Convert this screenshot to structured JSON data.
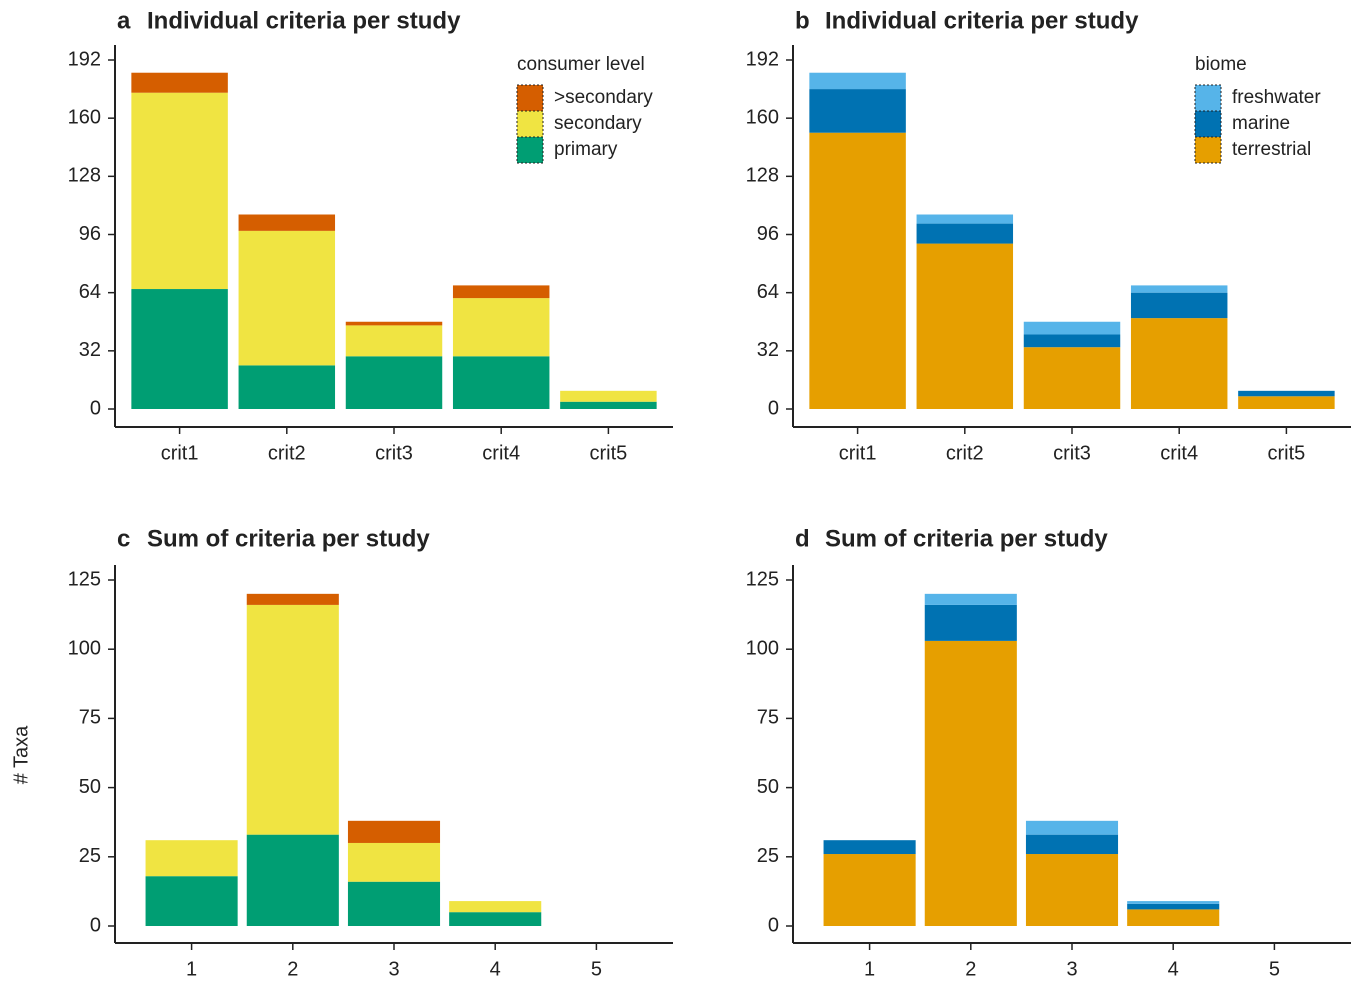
{
  "ylabel": "# Taxa",
  "chart_data": [
    {
      "type": "stacked_bar",
      "panel_label": "a",
      "title": "Individual criteria per study",
      "categories": [
        "crit1",
        "crit2",
        "crit3",
        "crit4",
        "crit5"
      ],
      "legend_title": "consumer level",
      "legend": "top-right",
      "series": [
        {
          "name": "primary",
          "color": "#009e73",
          "values": [
            66,
            24,
            29,
            29,
            4
          ]
        },
        {
          "name": "secondary",
          "color": "#f0e442",
          "values": [
            108,
            74,
            17,
            32,
            6
          ]
        },
        {
          "name": ">secondary",
          "color": "#d55e00",
          "values": [
            11,
            9,
            2,
            7,
            0
          ]
        }
      ],
      "ylim": [
        0,
        192
      ],
      "yticks": [
        0,
        32,
        64,
        96,
        128,
        160,
        192
      ]
    },
    {
      "type": "stacked_bar",
      "panel_label": "b",
      "title": "Individual criteria per study",
      "categories": [
        "crit1",
        "crit2",
        "crit3",
        "crit4",
        "crit5"
      ],
      "legend_title": "biome",
      "legend": "top-right",
      "series": [
        {
          "name": "terrestrial",
          "color": "#e69f00",
          "values": [
            152,
            91,
            34,
            50,
            7
          ]
        },
        {
          "name": "marine",
          "color": "#0072b2",
          "values": [
            24,
            11,
            7,
            14,
            3
          ]
        },
        {
          "name": "freshwater",
          "color": "#56b4e9",
          "values": [
            9,
            5,
            7,
            4,
            0
          ]
        }
      ],
      "ylim": [
        0,
        192
      ],
      "yticks": [
        0,
        32,
        64,
        96,
        128,
        160,
        192
      ]
    },
    {
      "type": "stacked_bar",
      "panel_label": "c",
      "title": "Sum of criteria per study",
      "categories": [
        "1",
        "2",
        "3",
        "4",
        "5"
      ],
      "series": [
        {
          "color": "#009e73",
          "values": [
            18,
            33,
            16,
            5,
            0
          ]
        },
        {
          "color": "#f0e442",
          "values": [
            13,
            83,
            14,
            4,
            0
          ]
        },
        {
          "color": "#d55e00",
          "values": [
            0,
            4,
            8,
            0,
            0
          ]
        }
      ],
      "ylim": [
        0,
        125
      ],
      "yticks": [
        0,
        25,
        50,
        75,
        100,
        125
      ]
    },
    {
      "type": "stacked_bar",
      "panel_label": "d",
      "title": "Sum of criteria per study",
      "categories": [
        "1",
        "2",
        "3",
        "4",
        "5"
      ],
      "series": [
        {
          "color": "#e69f00",
          "values": [
            26,
            103,
            26,
            6,
            0
          ]
        },
        {
          "color": "#0072b2",
          "values": [
            5,
            13,
            7,
            2,
            0
          ]
        },
        {
          "color": "#56b4e9",
          "values": [
            0,
            4,
            5,
            1,
            0
          ]
        }
      ],
      "ylim": [
        0,
        125
      ],
      "yticks": [
        0,
        25,
        50,
        75,
        100,
        125
      ]
    }
  ]
}
